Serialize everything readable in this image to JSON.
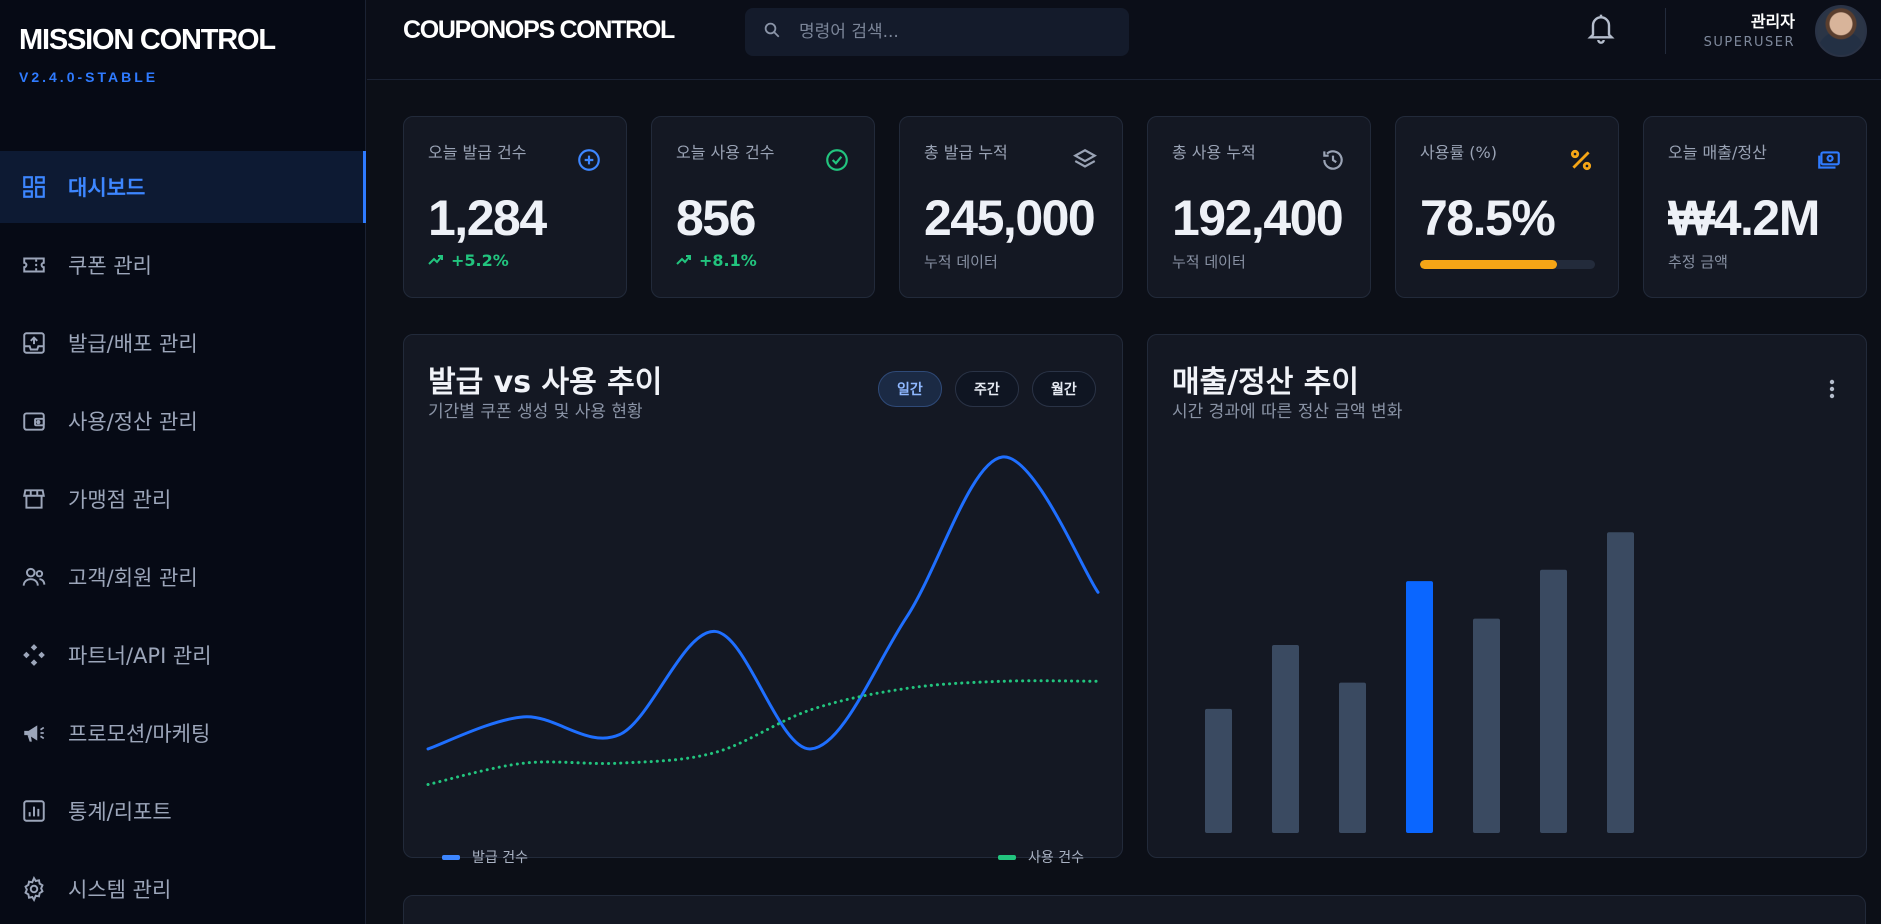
{
  "sidebar": {
    "brand": "MISSION CONTROL",
    "version": "V2.4.0-STABLE",
    "items": [
      {
        "label": "대시보드",
        "icon": "dashboard-icon"
      },
      {
        "label": "쿠폰 관리",
        "icon": "ticket-icon"
      },
      {
        "label": "발급/배포 관리",
        "icon": "upload-box-icon"
      },
      {
        "label": "사용/정산 관리",
        "icon": "wallet-icon"
      },
      {
        "label": "가맹점 관리",
        "icon": "store-icon"
      },
      {
        "label": "고객/회원 관리",
        "icon": "users-icon"
      },
      {
        "label": "파트너/API 관리",
        "icon": "api-icon"
      },
      {
        "label": "프로모션/마케팅",
        "icon": "megaphone-icon"
      },
      {
        "label": "통계/리포트",
        "icon": "report-icon"
      },
      {
        "label": "시스템 관리",
        "icon": "gear-icon"
      }
    ]
  },
  "header": {
    "title": "COUPONOPS CONTROL",
    "search_placeholder": "명령어 검색...",
    "user_name": "관리자",
    "user_role": "SUPERUSER"
  },
  "stats": [
    {
      "label": "오늘 발급 건수",
      "value": "1,284",
      "delta": "+5.2%",
      "icon": "plus-circle-icon",
      "color": "#3d86ff"
    },
    {
      "label": "오늘 사용 건수",
      "value": "856",
      "delta": "+8.1%",
      "icon": "check-circle-icon",
      "color": "#22c47e"
    },
    {
      "label": "총 발급 누적",
      "value": "245,000",
      "sub": "누적 데이터",
      "icon": "layers-icon",
      "color": "#9aa3b5"
    },
    {
      "label": "총 사용 누적",
      "value": "192,400",
      "sub": "누적 데이터",
      "icon": "history-icon",
      "color": "#9aa3b5"
    },
    {
      "label": "사용률 (%)",
      "value": "78.5%",
      "progress": 0.785,
      "icon": "percent-icon",
      "color": "#f5a516"
    },
    {
      "label": "오늘 매출/정산",
      "value": "₩4.2M",
      "sub": "추정 금액",
      "icon": "cash-icon",
      "color": "#2f7bff"
    }
  ],
  "trend_panel": {
    "title": "발급 vs 사용 추이",
    "subtitle": "기간별 쿠폰 생성 및 사용 현황",
    "tabs": [
      "일간",
      "주간",
      "월간"
    ],
    "active_tab": 0,
    "legend_issue": "발급 건수",
    "legend_use": "사용 건수"
  },
  "revenue_panel": {
    "title": "매출/정산 추이",
    "subtitle": "시간 경과에 따른 정산 금액 변화"
  },
  "chart_data": [
    {
      "type": "line",
      "series": [
        {
          "name": "발급 건수",
          "color": "#1f6fff",
          "style": "solid",
          "values": [
            0.18,
            0.27,
            0.22,
            0.51,
            0.18,
            0.55,
            1.0,
            0.62
          ]
        },
        {
          "name": "사용 건수",
          "color": "#22c47e",
          "style": "dotted",
          "values": [
            0.08,
            0.14,
            0.14,
            0.17,
            0.29,
            0.35,
            0.37,
            0.37
          ]
        }
      ],
      "ylim": [
        0,
        1
      ]
    },
    {
      "type": "bar",
      "values": [
        33,
        50,
        40,
        67,
        57,
        70,
        80
      ],
      "highlight_index": 3,
      "colors": {
        "default": "#3a4a61",
        "highlight": "#0a66ff"
      },
      "ylim": [
        0,
        100
      ]
    }
  ]
}
